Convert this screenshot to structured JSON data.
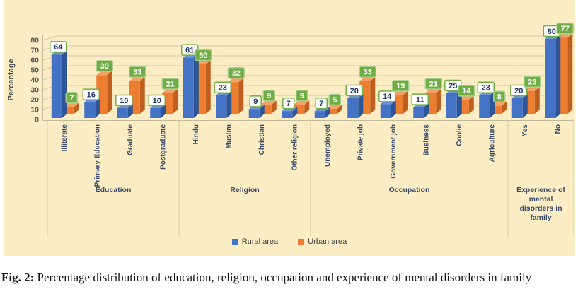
{
  "figure": {
    "caption_prefix": "Fig. 2:",
    "caption_text": " Percentage distribution of education, religion, occupation and experience of mental disorders in family"
  },
  "colors": {
    "panel_bg": "#FCEDC4",
    "grid": "#D3C9A9",
    "axis": "#C4BA9C",
    "tick_text": "#595959",
    "rural": {
      "front": "#4472C4",
      "top": "#6C93D6",
      "side": "#2D5597"
    },
    "urban": {
      "front": "#ED7D31",
      "top": "#F2A266",
      "side": "#C05F1D"
    },
    "label_box_rural": {
      "bg": "#FFFFFF",
      "border": "#70AD47",
      "text": "#1F3864"
    },
    "label_box_urban": {
      "bg": "#70AD47",
      "border": "#A9D18E",
      "text": "#FFFFFF"
    }
  },
  "chart_data": {
    "type": "bar",
    "title": "",
    "xlabel": "",
    "ylabel": "Percentage",
    "ylim": [
      0,
      80
    ],
    "yticks": [
      0,
      10,
      20,
      30,
      40,
      50,
      60,
      70,
      80
    ],
    "grid": true,
    "legend_position": "bottom",
    "style": "3d-clustered-column",
    "groups": [
      {
        "label": "Education",
        "label_lines": [
          "Education"
        ],
        "categories": [
          "Illiterate",
          "Primary Education",
          "Graduate",
          "Postgraduate"
        ]
      },
      {
        "label": "Religion",
        "label_lines": [
          "Religion"
        ],
        "categories": [
          "Hindu",
          "Muslim",
          "Christian",
          "Other religion"
        ]
      },
      {
        "label": "Occupation",
        "label_lines": [
          "Occupation"
        ],
        "categories": [
          "Unemployed",
          "Private job",
          "Government job",
          "Business",
          "Coolie",
          "Agriculture"
        ]
      },
      {
        "label": "Experience of mental disorders in family",
        "label_lines": [
          "Experience of",
          "mental",
          "disorders in",
          "family"
        ],
        "categories": [
          "Yes",
          "No"
        ]
      }
    ],
    "series": [
      {
        "name": "Rural area",
        "values": [
          64,
          16,
          10,
          10,
          61,
          23,
          9,
          7,
          7,
          20,
          14,
          11,
          25,
          23,
          20,
          80
        ]
      },
      {
        "name": "Urban area",
        "values": [
          7,
          39,
          33,
          21,
          50,
          32,
          9,
          9,
          5,
          33,
          19,
          21,
          14,
          8,
          23,
          77
        ]
      }
    ]
  }
}
